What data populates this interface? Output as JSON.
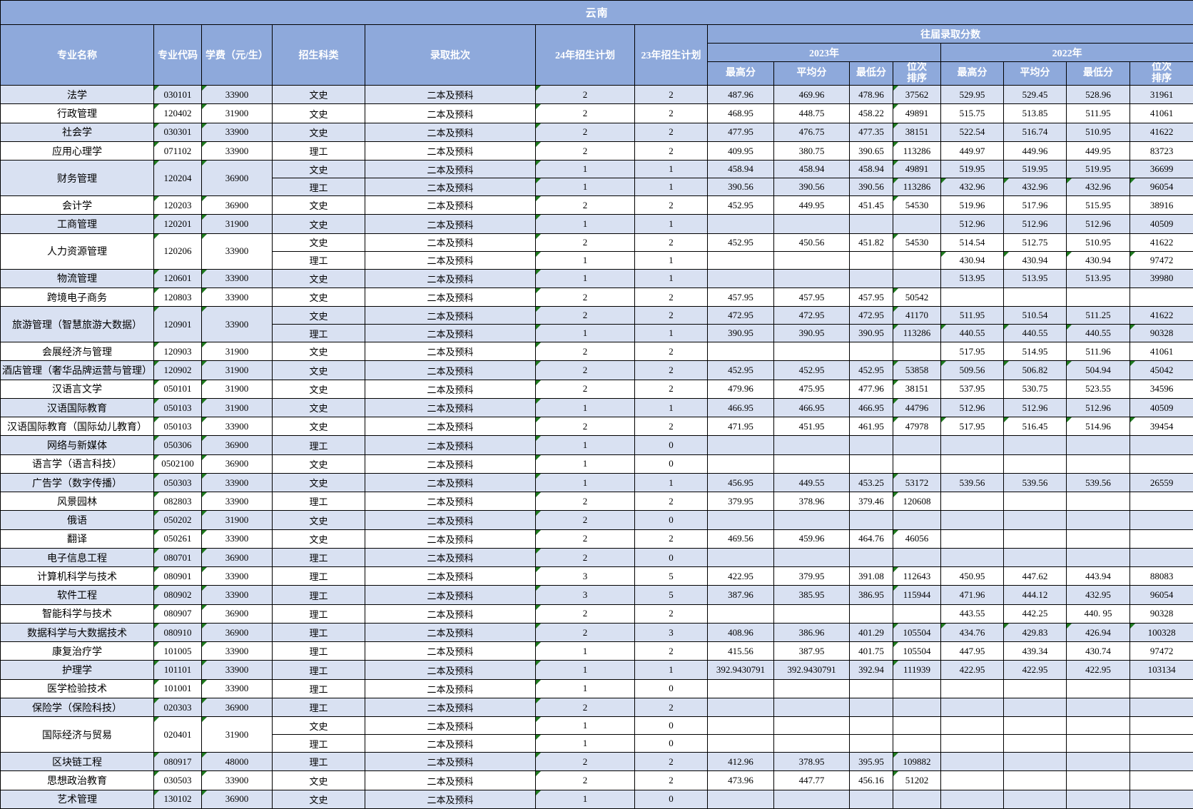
{
  "banner": "云南",
  "colors": {
    "header_bg": "#8EA9DB",
    "row_alt_bg": "#D9E1F2",
    "row_bg": "#FFFFFF",
    "border": "#000000",
    "header_text": "#FFFFFF",
    "flag_green": "#1F7A1F"
  },
  "headers": {
    "major_name": "专业名称",
    "major_code": "专业代码",
    "tuition": "学费（元/生）",
    "category": "招生科类",
    "batch": "录取批次",
    "plan24": "24年招生计划",
    "plan23": "23年招生计划",
    "past_scores": "往届录取分数",
    "year2023": "2023年",
    "year2022": "2022年",
    "score_sub": [
      "最高分",
      "平均分",
      "最低分",
      "位次\n排序"
    ]
  },
  "groups": [
    {
      "name": "法学",
      "code": "030101",
      "tuition": "33900",
      "rows": [
        {
          "cat": "文史",
          "batch": "二本及预科",
          "p24": "2",
          "p23": "2",
          "s": [
            "487.96",
            "469.96",
            "478.96",
            "37562",
            "529.95",
            "529.45",
            "528.96",
            "31961"
          ],
          "f22": false
        }
      ]
    },
    {
      "name": "行政管理",
      "code": "120402",
      "tuition": "31900",
      "rows": [
        {
          "cat": "文史",
          "batch": "二本及预科",
          "p24": "2",
          "p23": "2",
          "s": [
            "468.95",
            "448.75",
            "458.22",
            "49891",
            "515.75",
            "513.85",
            "511.95",
            "41061"
          ],
          "f22": false
        }
      ]
    },
    {
      "name": "社会学",
      "code": "030301",
      "tuition": "33900",
      "rows": [
        {
          "cat": "文史",
          "batch": "二本及预科",
          "p24": "2",
          "p23": "2",
          "s": [
            "477.95",
            "476.75",
            "477.35",
            "38151",
            "522.54",
            "516.74",
            "510.95",
            "41622"
          ],
          "f22": false
        }
      ]
    },
    {
      "name": "应用心理学",
      "code": "071102",
      "tuition": "33900",
      "rows": [
        {
          "cat": "理工",
          "batch": "二本及预科",
          "p24": "2",
          "p23": "2",
          "s": [
            "409.95",
            "380.75",
            "390.65",
            "113286",
            "449.97",
            "449.96",
            "449.95",
            "83723"
          ],
          "f22": false
        }
      ]
    },
    {
      "name": "财务管理",
      "code": "120204",
      "tuition": "36900",
      "rows": [
        {
          "cat": "文史",
          "batch": "二本及预科",
          "p24": "1",
          "p23": "1",
          "s": [
            "458.94",
            "458.94",
            "458.94",
            "49891",
            "519.95",
            "519.95",
            "519.95",
            "36699"
          ],
          "f22": false
        },
        {
          "cat": "理工",
          "batch": "二本及预科",
          "p24": "1",
          "p23": "1",
          "s": [
            "390.56",
            "390.56",
            "390.56",
            "113286",
            "432.96",
            "432.96",
            "432.96",
            "96054"
          ],
          "f22": true
        }
      ]
    },
    {
      "name": "会计学",
      "code": "120203",
      "tuition": "36900",
      "rows": [
        {
          "cat": "文史",
          "batch": "二本及预科",
          "p24": "2",
          "p23": "2",
          "s": [
            "452.95",
            "449.95",
            "451.45",
            "54530",
            "519.96",
            "517.96",
            "515.95",
            "38916"
          ],
          "f22": false
        }
      ]
    },
    {
      "name": "工商管理",
      "code": "120201",
      "tuition": "31900",
      "rows": [
        {
          "cat": "文史",
          "batch": "二本及预科",
          "p24": "1",
          "p23": "1",
          "s": [
            "",
            "",
            "",
            "",
            "512.96",
            "512.96",
            "512.96",
            "40509"
          ],
          "f22": false
        }
      ]
    },
    {
      "name": "人力资源管理",
      "code": "120206",
      "tuition": "33900",
      "rows": [
        {
          "cat": "文史",
          "batch": "二本及预科",
          "p24": "2",
          "p23": "2",
          "s": [
            "452.95",
            "450.56",
            "451.82",
            "54530",
            "514.54",
            "512.75",
            "510.95",
            "41622"
          ],
          "f22": false
        },
        {
          "cat": "理工",
          "batch": "二本及预科",
          "p24": "1",
          "p23": "1",
          "s": [
            "",
            "",
            "",
            "",
            "430.94",
            "430.94",
            "430.94",
            "97472"
          ],
          "f22": true
        }
      ]
    },
    {
      "name": "物流管理",
      "code": "120601",
      "tuition": "33900",
      "rows": [
        {
          "cat": "文史",
          "batch": "二本及预科",
          "p24": "1",
          "p23": "1",
          "s": [
            "",
            "",
            "",
            "",
            "513.95",
            "513.95",
            "513.95",
            "39980"
          ],
          "f22": false
        }
      ]
    },
    {
      "name": "跨境电子商务",
      "code": "120803",
      "tuition": "33900",
      "rows": [
        {
          "cat": "文史",
          "batch": "二本及预科",
          "p24": "2",
          "p23": "2",
          "s": [
            "457.95",
            "457.95",
            "457.95",
            "50542",
            "",
            "",
            "",
            ""
          ],
          "f22": false
        }
      ]
    },
    {
      "name": "旅游管理（智慧旅游大数据）",
      "code": "120901",
      "tuition": "33900",
      "rows": [
        {
          "cat": "文史",
          "batch": "二本及预科",
          "p24": "2",
          "p23": "2",
          "s": [
            "472.95",
            "472.95",
            "472.95",
            "41170",
            "511.95",
            "510.54",
            "511.25",
            "41622"
          ],
          "f22": false
        },
        {
          "cat": "理工",
          "batch": "二本及预科",
          "p24": "1",
          "p23": "1",
          "s": [
            "390.95",
            "390.95",
            "390.95",
            "113286",
            "440.55",
            "440.55",
            "440.55",
            "90328"
          ],
          "f22": true
        }
      ]
    },
    {
      "name": "会展经济与管理",
      "code": "120903",
      "tuition": "31900",
      "rows": [
        {
          "cat": "文史",
          "batch": "二本及预科",
          "p24": "2",
          "p23": "2",
          "s": [
            "",
            "",
            "",
            "",
            "517.95",
            "514.95",
            "511.96",
            "41061"
          ],
          "f22": false
        }
      ]
    },
    {
      "name": "酒店管理（奢华品牌运营与管理）",
      "code": "120902",
      "tuition": "31900",
      "rows": [
        {
          "cat": "文史",
          "batch": "二本及预科",
          "p24": "2",
          "p23": "2",
          "s": [
            "452.95",
            "452.95",
            "452.95",
            "53858",
            "509.56",
            "506.82",
            "504.94",
            "45042"
          ],
          "f22": true
        }
      ]
    },
    {
      "name": "汉语言文学",
      "code": "050101",
      "tuition": "31900",
      "rows": [
        {
          "cat": "文史",
          "batch": "二本及预科",
          "p24": "2",
          "p23": "2",
          "s": [
            "479.96",
            "475.95",
            "477.96",
            "38151",
            "537.95",
            "530.75",
            "523.55",
            "34596"
          ],
          "f22": false
        }
      ]
    },
    {
      "name": "汉语国际教育",
      "code": "050103",
      "tuition": "31900",
      "rows": [
        {
          "cat": "文史",
          "batch": "二本及预科",
          "p24": "1",
          "p23": "1",
          "s": [
            "466.95",
            "466.95",
            "466.95",
            "44796",
            "512.96",
            "512.96",
            "512.96",
            "40509"
          ],
          "f22": false
        }
      ]
    },
    {
      "name": "汉语国际教育（国际幼儿教育）",
      "code": "050103",
      "tuition": "33900",
      "rows": [
        {
          "cat": "文史",
          "batch": "二本及预科",
          "p24": "2",
          "p23": "2",
          "s": [
            "471.95",
            "451.95",
            "461.95",
            "47978",
            "517.95",
            "516.45",
            "514.96",
            "39454"
          ],
          "f22": true
        }
      ]
    },
    {
      "name": "网络与新媒体",
      "code": "050306",
      "tuition": "36900",
      "rows": [
        {
          "cat": "理工",
          "batch": "二本及预科",
          "p24": "1",
          "p23": "0",
          "s": [
            "",
            "",
            "",
            "",
            "",
            "",
            "",
            ""
          ],
          "f22": false
        }
      ]
    },
    {
      "name": "语言学（语言科技）",
      "code": "0502100",
      "tuition": "36900",
      "rows": [
        {
          "cat": "文史",
          "batch": "二本及预科",
          "p24": "1",
          "p23": "0",
          "s": [
            "",
            "",
            "",
            "",
            "",
            "",
            "",
            ""
          ],
          "f22": false
        }
      ]
    },
    {
      "name": "广告学（数字传播）",
      "code": "050303",
      "tuition": "33900",
      "rows": [
        {
          "cat": "文史",
          "batch": "二本及预科",
          "p24": "1",
          "p23": "1",
          "s": [
            "456.95",
            "449.55",
            "453.25",
            "53172",
            "539.56",
            "539.56",
            "539.56",
            "26559"
          ],
          "f22": false
        }
      ]
    },
    {
      "name": "风景园林",
      "code": "082803",
      "tuition": "33900",
      "rows": [
        {
          "cat": "理工",
          "batch": "二本及预科",
          "p24": "2",
          "p23": "2",
          "s": [
            "379.95",
            "378.96",
            "379.46",
            "120608",
            "",
            "",
            "",
            ""
          ],
          "f22": false
        }
      ]
    },
    {
      "name": "俄语",
      "code": "050202",
      "tuition": "31900",
      "rows": [
        {
          "cat": "文史",
          "batch": "二本及预科",
          "p24": "2",
          "p23": "0",
          "s": [
            "",
            "",
            "",
            "",
            "",
            "",
            "",
            ""
          ],
          "f22": false
        }
      ]
    },
    {
      "name": "翻译",
      "code": "050261",
      "tuition": "33900",
      "rows": [
        {
          "cat": "文史",
          "batch": "二本及预科",
          "p24": "2",
          "p23": "2",
          "s": [
            "469.56",
            "459.96",
            "464.76",
            "46056",
            "",
            "",
            "",
            ""
          ],
          "f22": false
        }
      ]
    },
    {
      "name": "电子信息工程",
      "code": "080701",
      "tuition": "36900",
      "rows": [
        {
          "cat": "理工",
          "batch": "二本及预科",
          "p24": "2",
          "p23": "0",
          "s": [
            "",
            "",
            "",
            "",
            "",
            "",
            "",
            ""
          ],
          "f22": false
        }
      ]
    },
    {
      "name": "计算机科学与技术",
      "code": "080901",
      "tuition": "33900",
      "rows": [
        {
          "cat": "理工",
          "batch": "二本及预科",
          "p24": "3",
          "p23": "5",
          "s": [
            "422.95",
            "379.95",
            "391.08",
            "112643",
            "450.95",
            "447.62",
            "443.94",
            "88083"
          ],
          "f22": false
        }
      ]
    },
    {
      "name": "软件工程",
      "code": "080902",
      "tuition": "33900",
      "rows": [
        {
          "cat": "理工",
          "batch": "二本及预科",
          "p24": "3",
          "p23": "5",
          "s": [
            "387.96",
            "385.95",
            "386.95",
            "115944",
            "471.96",
            "444.12",
            "432.95",
            "96054"
          ],
          "f22": false
        }
      ]
    },
    {
      "name": "智能科学与技术",
      "code": "080907",
      "tuition": "36900",
      "rows": [
        {
          "cat": "理工",
          "batch": "二本及预科",
          "p24": "2",
          "p23": "2",
          "s": [
            "",
            "",
            "",
            "",
            "443.55",
            "442.25",
            "440. 95",
            "90328"
          ],
          "f22": false
        }
      ]
    },
    {
      "name": "数据科学与大数据技术",
      "code": "080910",
      "tuition": "36900",
      "rows": [
        {
          "cat": "理工",
          "batch": "二本及预科",
          "p24": "2",
          "p23": "3",
          "s": [
            "408.96",
            "386.96",
            "401.29",
            "105504",
            "434.76",
            "429.83",
            "426.94",
            "100328"
          ],
          "f22": true
        }
      ]
    },
    {
      "name": "康复治疗学",
      "code": "101005",
      "tuition": "33900",
      "rows": [
        {
          "cat": "理工",
          "batch": "二本及预科",
          "p24": "1",
          "p23": "2",
          "s": [
            "415.56",
            "387.95",
            "401.75",
            "105504",
            "447.95",
            "439.34",
            "430.74",
            "97472"
          ],
          "f22": false
        }
      ]
    },
    {
      "name": "护理学",
      "code": "101101",
      "tuition": "33900",
      "rows": [
        {
          "cat": "理工",
          "batch": "二本及预科",
          "p24": "1",
          "p23": "1",
          "s": [
            "392.9430791",
            "392.9430791",
            "392.94",
            "111939",
            "422.95",
            "422.95",
            "422.95",
            "103134"
          ],
          "f22": false
        }
      ]
    },
    {
      "name": "医学检验技术",
      "code": "101001",
      "tuition": "33900",
      "rows": [
        {
          "cat": "理工",
          "batch": "二本及预科",
          "p24": "1",
          "p23": "0",
          "s": [
            "",
            "",
            "",
            "",
            "",
            "",
            "",
            ""
          ],
          "f22": false
        }
      ]
    },
    {
      "name": "保险学（保险科技）",
      "code": "020303",
      "tuition": "36900",
      "rows": [
        {
          "cat": "理工",
          "batch": "二本及预科",
          "p24": "2",
          "p23": "2",
          "s": [
            "",
            "",
            "",
            "",
            "",
            "",
            "",
            ""
          ],
          "f22": false
        }
      ]
    },
    {
      "name": "国际经济与贸易",
      "code": "020401",
      "tuition": "31900",
      "rows": [
        {
          "cat": "文史",
          "batch": "二本及预科",
          "p24": "1",
          "p23": "0",
          "s": [
            "",
            "",
            "",
            "",
            "",
            "",
            "",
            ""
          ],
          "f22": false
        },
        {
          "cat": "理工",
          "batch": "二本及预科",
          "p24": "1",
          "p23": "0",
          "s": [
            "",
            "",
            "",
            "",
            "",
            "",
            "",
            ""
          ],
          "f22": false
        }
      ]
    },
    {
      "name": "区块链工程",
      "code": "080917",
      "tuition": "48000",
      "rows": [
        {
          "cat": "理工",
          "batch": "二本及预科",
          "p24": "2",
          "p23": "2",
          "s": [
            "412.96",
            "378.95",
            "395.95",
            "109882",
            "",
            "",
            "",
            ""
          ],
          "f22": false
        }
      ]
    },
    {
      "name": "思想政治教育",
      "code": "030503",
      "tuition": "33900",
      "rows": [
        {
          "cat": "文史",
          "batch": "二本及预科",
          "p24": "2",
          "p23": "2",
          "s": [
            "473.96",
            "447.77",
            "456.16",
            "51202",
            "",
            "",
            "",
            ""
          ],
          "f22": false
        }
      ]
    },
    {
      "name": "艺术管理",
      "code": "130102",
      "tuition": "36900",
      "rows": [
        {
          "cat": "文史",
          "batch": "二本及预科",
          "p24": "1",
          "p23": "0",
          "s": [
            "",
            "",
            "",
            "",
            "",
            "",
            "",
            ""
          ],
          "f22": false
        }
      ]
    }
  ]
}
